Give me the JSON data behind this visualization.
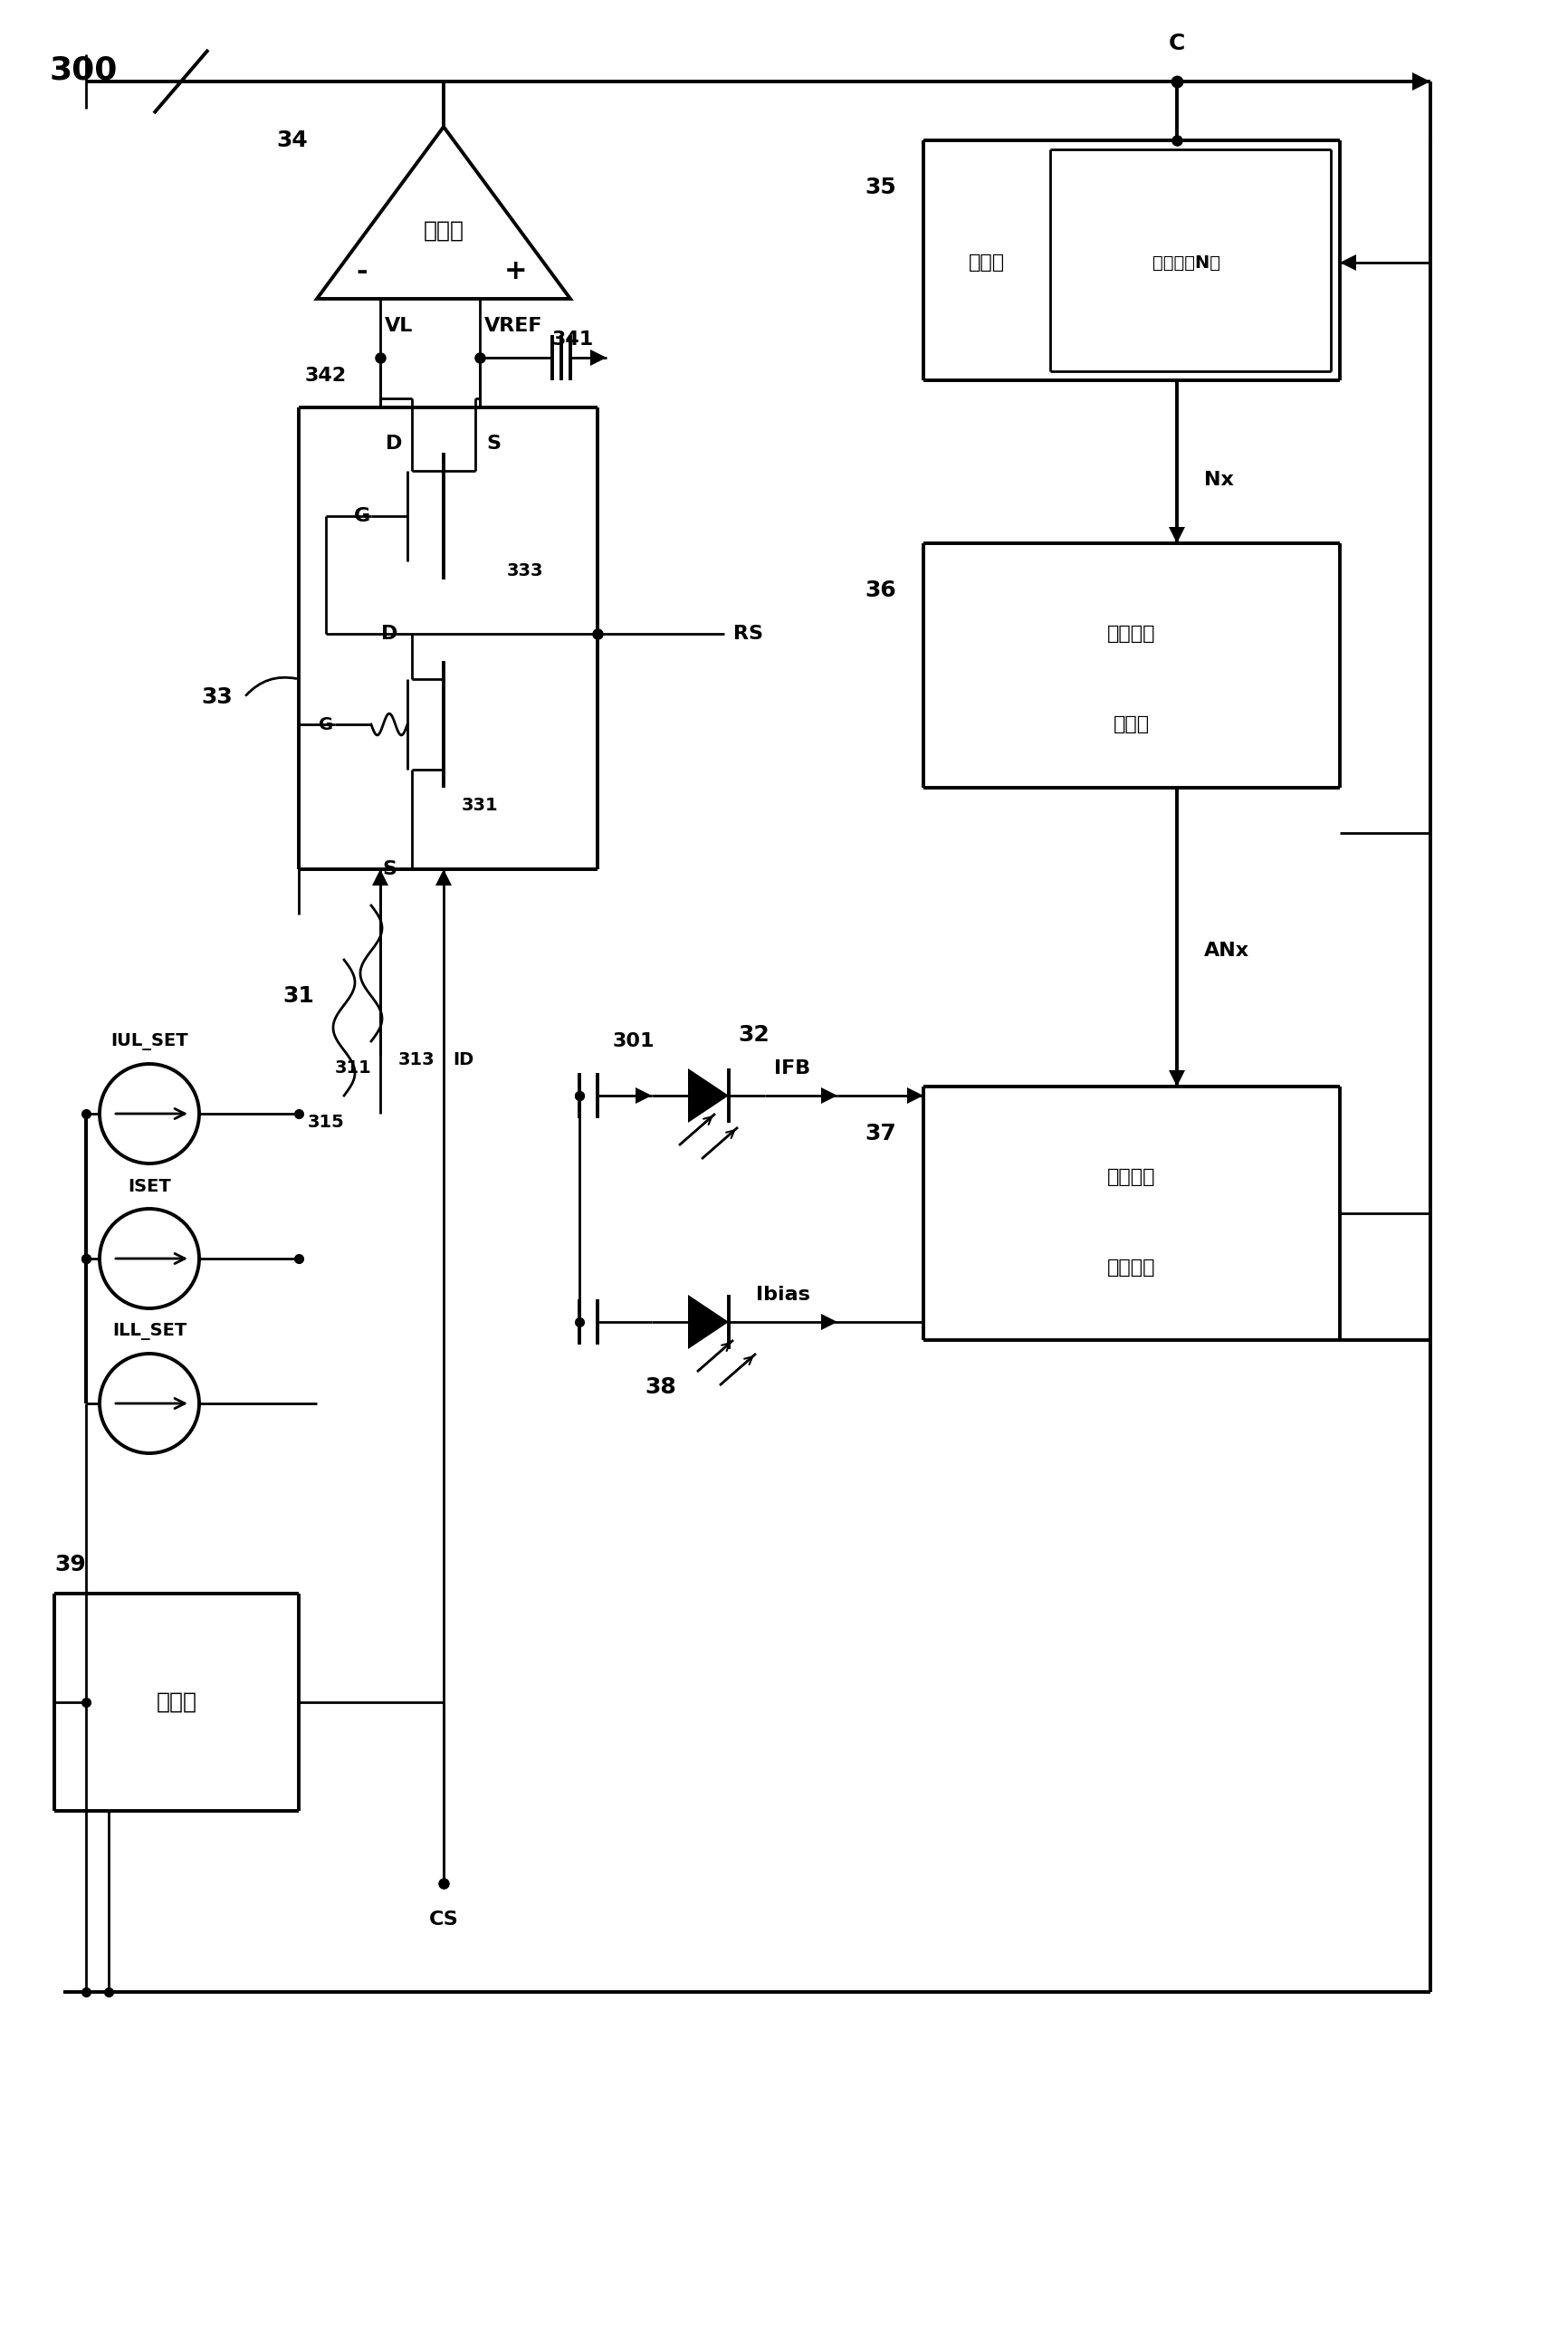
{
  "bg_color": "#ffffff",
  "fig_width": 17.32,
  "fig_height": 25.91,
  "label_C": "C",
  "label_300": "300",
  "comparator_label": "比较器",
  "counter_label1": "计数器",
  "counter_label2": "计数値（N）",
  "dac_label1": "数字模拟",
  "dac_label2": "转换器",
  "laser_label1": "激光二极",
  "laser_label2": "管驱动器",
  "ctrl_label": "控制器",
  "label_34": "34",
  "label_35": "35",
  "label_36": "36",
  "label_37": "37",
  "label_38": "38",
  "label_39": "39",
  "label_301": "301",
  "label_311": "311",
  "label_313": "313",
  "label_315": "315",
  "label_331": "331",
  "label_333": "333",
  "label_341": "341",
  "label_342": "342",
  "label_31": "31",
  "label_32": "32",
  "label_33": "33",
  "label_IUL_SET": "IUL_SET",
  "label_ISET": "ISET",
  "label_ILL_SET": "ILL_SET",
  "label_VL": "VL",
  "label_VREF": "VREF",
  "label_RS": "RS",
  "label_Nx": "Nx",
  "label_ANx": "ANx",
  "label_CS": "CS",
  "label_ID": "ID",
  "label_IFB": "IFB",
  "label_Ibias": "Ibias"
}
